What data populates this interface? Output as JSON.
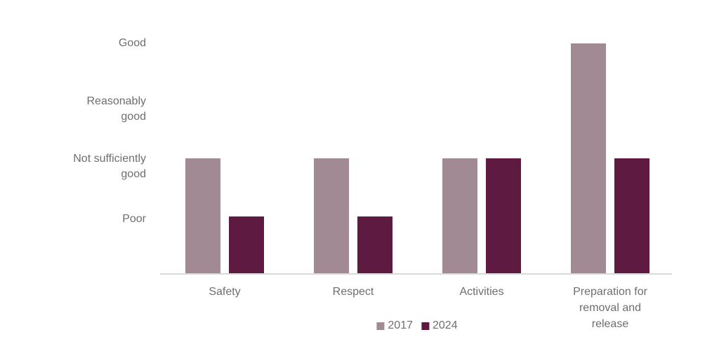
{
  "chart_data": {
    "type": "bar",
    "title": "",
    "categories": [
      "Safety",
      "Respect",
      "Activities",
      "Preparation for\nremoval and\nrelease"
    ],
    "series": [
      {
        "name": "2017",
        "color": "#a28a94",
        "values": [
          2,
          2,
          2,
          4
        ]
      },
      {
        "name": "2024",
        "color": "#5e1a40",
        "values": [
          1,
          1,
          2,
          2
        ]
      }
    ],
    "y_axis": {
      "range": [
        0,
        4
      ],
      "gridlines": false,
      "tick_labels": [
        {
          "value": 4,
          "text": "Good"
        },
        {
          "value": 3,
          "text": "Reasonably\ngood"
        },
        {
          "value": 2,
          "text": "Not sufficiently\ngood"
        },
        {
          "value": 1,
          "text": "Poor"
        }
      ]
    },
    "legend": {
      "position": "bottom-center",
      "entries": [
        {
          "label": "2017",
          "color": "#a28a94"
        },
        {
          "label": "2024",
          "color": "#5e1a40"
        }
      ]
    },
    "colors": {
      "text": "#6e6e6e",
      "axis_line": "#d9d9d9",
      "background": "#ffffff"
    }
  }
}
